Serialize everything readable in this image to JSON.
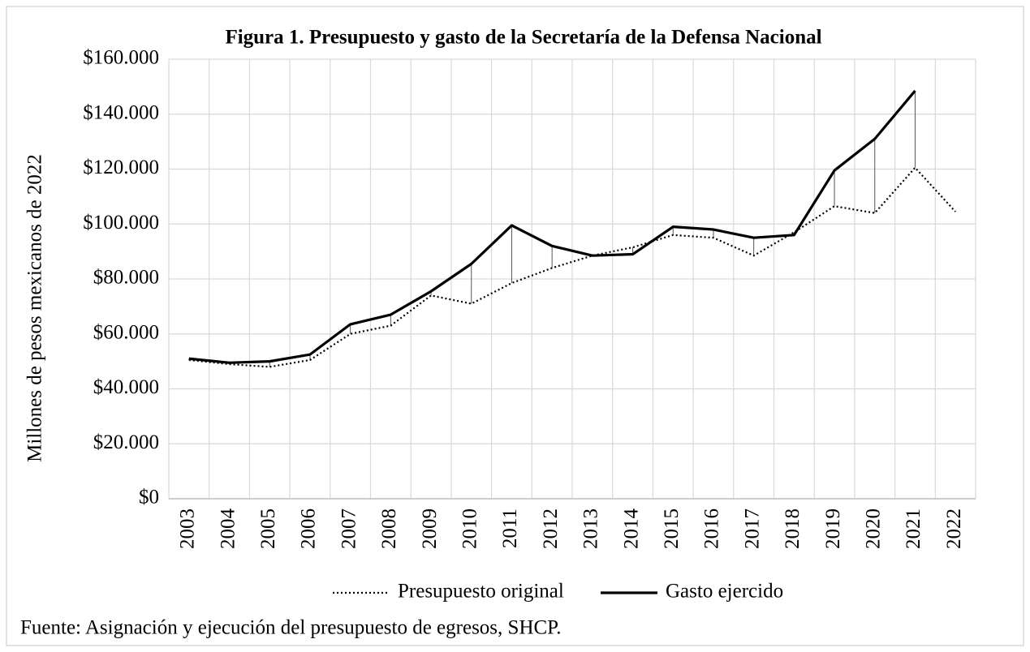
{
  "chart_data": {
    "type": "line",
    "title": "Figura 1. Presupuesto y gasto de la Secretaría de la Defensa Nacional",
    "y_label": "Millones de pesos mexicanos de 2022",
    "source": "Fuente: Asignación y ejecución del presupuesto de egresos, SHCP.",
    "categories": [
      "2003",
      "2004",
      "2005",
      "2006",
      "2007",
      "2008",
      "2009",
      "2010",
      "2011",
      "2012",
      "2013",
      "2014",
      "2015",
      "2016",
      "2017",
      "2018",
      "2019",
      "2020",
      "2021",
      "2022"
    ],
    "series": [
      {
        "name": "Presupuesto original",
        "color": "#000000",
        "dash": "dotted",
        "values": [
          50500,
          49000,
          48000,
          50500,
          60000,
          63000,
          74000,
          71000,
          78500,
          84000,
          88500,
          91500,
          96000,
          95000,
          88500,
          97000,
          106500,
          104000,
          120500,
          104500
        ]
      },
      {
        "name": "Gasto ejercido",
        "color": "#000000",
        "dash": "solid",
        "values": [
          51000,
          49500,
          50000,
          52500,
          63500,
          67000,
          75500,
          85500,
          99500,
          92000,
          88500,
          89000,
          99000,
          98000,
          95000,
          96000,
          119500,
          131000,
          148500,
          null
        ]
      }
    ],
    "high_low_lines": true,
    "ylim": [
      0,
      160000
    ],
    "yticks": [
      {
        "value": 0,
        "label": "$0"
      },
      {
        "value": 20000,
        "label": "$20.000"
      },
      {
        "value": 40000,
        "label": "$40.000"
      },
      {
        "value": 60000,
        "label": "$60.000"
      },
      {
        "value": 80000,
        "label": "$80.000"
      },
      {
        "value": 100000,
        "label": "$100.000"
      },
      {
        "value": 120000,
        "label": "$120.000"
      },
      {
        "value": 140000,
        "label": "$140.000"
      },
      {
        "value": 160000,
        "label": "$160.000"
      }
    ],
    "grid": true,
    "legend": "bottom"
  }
}
